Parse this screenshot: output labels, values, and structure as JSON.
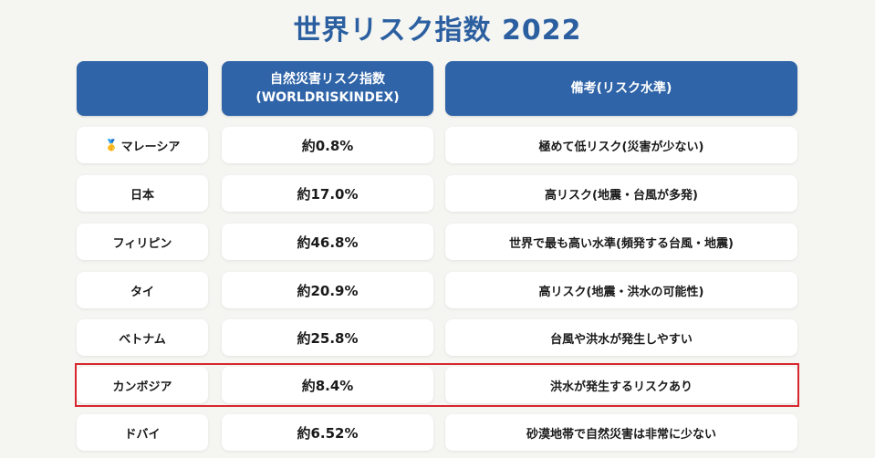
{
  "title": "世界リスク指数 2022",
  "header": {
    "col1": "",
    "col2_line1": "自然災害リスク指数",
    "col2_line2": "(WORLDRISKINDEX)",
    "col3": "備考(リスク水準)"
  },
  "rows": [
    {
      "country": "マレーシア",
      "index": "約0.8%",
      "note": "極めて低リスク(災害が少ない)",
      "medal": true
    },
    {
      "country": "日本",
      "index": "約17.0%",
      "note": "高リスク(地震・台風が多発)"
    },
    {
      "country": "フィリピン",
      "index": "約46.8%",
      "note": "世界で最も高い水準(頻発する台風・地震)"
    },
    {
      "country": "タイ",
      "index": "約20.9%",
      "note": "高リスク(地震・洪水の可能性)"
    },
    {
      "country": "ベトナム",
      "index": "約25.8%",
      "note": "台風や洪水が発生しやすい"
    },
    {
      "country": "カンボジア",
      "index": "約8.4%",
      "note": "洪水が発生するリスクあり",
      "highlighted": true
    },
    {
      "country": "ドバイ",
      "index": "約6.52%",
      "note": "砂漠地帯で自然災害は非常に少ない"
    }
  ],
  "colors": {
    "header_bg": "#2f64a8",
    "title": "#2b5fa0",
    "highlight_border": "#d8262e"
  },
  "icons": {
    "medal": "medal-icon"
  }
}
